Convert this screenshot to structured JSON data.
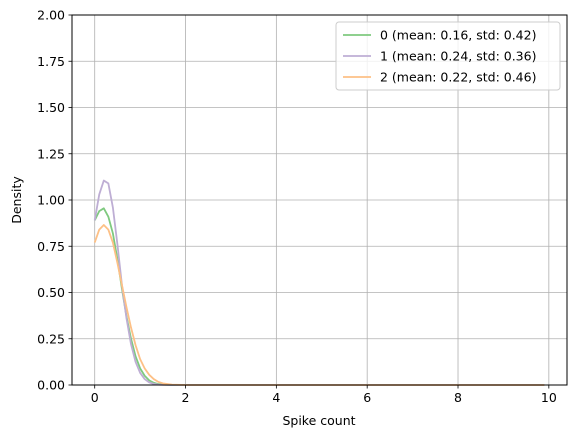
{
  "chart_data": {
    "type": "line",
    "title": "",
    "xlabel": "Spike count",
    "ylabel": "Density",
    "xlim": [
      -0.5,
      10.4
    ],
    "ylim": [
      0,
      2.0
    ],
    "xticks": [
      0,
      2,
      4,
      6,
      8,
      10
    ],
    "yticks": [
      0.0,
      0.25,
      0.5,
      0.75,
      1.0,
      1.25,
      1.5,
      1.75,
      2.0
    ],
    "ytick_labels": [
      "0.00",
      "0.25",
      "0.50",
      "0.75",
      "1.00",
      "1.25",
      "1.50",
      "1.75",
      "2.00"
    ],
    "grid": true,
    "legend_position": "top-right",
    "series": [
      {
        "name": "0 (mean: 0.16, std: 0.42)",
        "color": "#7fc97f",
        "x": [
          0,
          0.1,
          0.2,
          0.3,
          0.4,
          0.5,
          0.6,
          0.7,
          0.8,
          0.9,
          1.0,
          1.1,
          1.2,
          1.3,
          1.4,
          1.5,
          1.7,
          2.0,
          3.0,
          4.0,
          6.0,
          8.0,
          9.9
        ],
        "y": [
          0.89,
          0.94,
          0.955,
          0.91,
          0.82,
          0.68,
          0.52,
          0.37,
          0.25,
          0.155,
          0.09,
          0.05,
          0.025,
          0.012,
          0.005,
          0.002,
          0.0,
          0.0,
          0.0,
          0.0,
          0.0,
          0.0,
          0.0
        ]
      },
      {
        "name": "1 (mean: 0.24, std: 0.36)",
        "color": "#beaed4",
        "x": [
          0,
          0.1,
          0.2,
          0.3,
          0.4,
          0.5,
          0.6,
          0.7,
          0.8,
          0.9,
          1.0,
          1.1,
          1.2,
          1.3,
          1.4,
          1.5,
          1.7,
          2.0,
          3.0,
          4.0,
          6.0,
          8.0,
          9.9
        ],
        "y": [
          0.89,
          1.03,
          1.105,
          1.09,
          0.96,
          0.76,
          0.54,
          0.36,
          0.22,
          0.125,
          0.066,
          0.032,
          0.014,
          0.006,
          0.002,
          0.001,
          0.0,
          0.0,
          0.0,
          0.0,
          0.0,
          0.0,
          0.0
        ]
      },
      {
        "name": "2 (mean: 0.22, std: 0.46)",
        "color": "#fdc086",
        "x": [
          0,
          0.1,
          0.2,
          0.3,
          0.4,
          0.5,
          0.6,
          0.7,
          0.8,
          0.9,
          1.0,
          1.1,
          1.2,
          1.3,
          1.4,
          1.5,
          1.7,
          2.0,
          3.0,
          4.0,
          6.0,
          8.0,
          9.9
        ],
        "y": [
          0.77,
          0.84,
          0.865,
          0.84,
          0.77,
          0.66,
          0.54,
          0.42,
          0.31,
          0.215,
          0.14,
          0.09,
          0.055,
          0.032,
          0.017,
          0.009,
          0.002,
          0.0,
          0.0,
          0.0,
          0.0,
          0.0,
          0.0
        ]
      }
    ]
  }
}
